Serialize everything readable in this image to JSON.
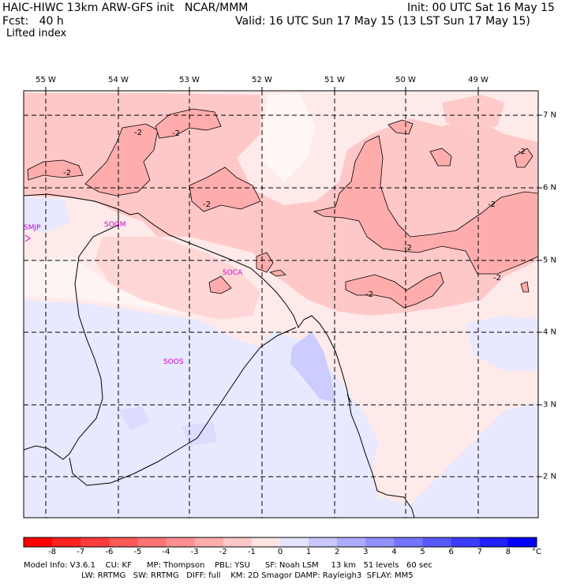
{
  "header": {
    "title_left": "HAIC-HIWC 13km ARW-GFS init   NCAR/MMM",
    "init": "Init: 00 UTC Sat 16 May 15",
    "fcst": "Fcst:   40 h",
    "valid": "Valid: 16 UTC Sun 17 May 15 (13 LST Sun 17 May 15)",
    "field": "Lifted index"
  },
  "map": {
    "longitudes": [
      "55 W",
      "54 W",
      "53 W",
      "52 W",
      "51 W",
      "50 W",
      "49 W"
    ],
    "latitudes": [
      "7 N",
      "6 N",
      "5 N",
      "4 N",
      "3 N",
      "2 N"
    ],
    "stations": [
      {
        "id": "SMJP"
      },
      {
        "id": "SOGM"
      },
      {
        "id": "SOCA"
      },
      {
        "id": "SOOS"
      }
    ],
    "contour_labels": [
      "-2",
      "-2",
      "-2",
      "-2",
      "-2",
      "-2",
      "-2",
      "-2",
      "-2"
    ],
    "colors": {
      "pos_light": "#e6e6ff",
      "pos_mid": "#ccccff",
      "neg_light": "#ffeaea",
      "neg_mid": "#ffc8c8",
      "neg_strong": "#ffa8a8",
      "coast": "#000000",
      "station": "#d000d0"
    }
  },
  "colorbar": {
    "unit": "°C",
    "ticks": [
      "-8",
      "-7",
      "-6",
      "-5",
      "-4",
      "-3",
      "-2",
      "-1",
      "0",
      "1",
      "2",
      "3",
      "4",
      "5",
      "6",
      "7",
      "8"
    ],
    "colors": [
      "#ff0000",
      "#ff2020",
      "#ff3c3c",
      "#ff5858",
      "#ff7474",
      "#ff9090",
      "#ffacac",
      "#ffc8c8",
      "#ffe4e4",
      "#e4e4ff",
      "#c8c8ff",
      "#acacff",
      "#9090ff",
      "#7474ff",
      "#5858ff",
      "#3c3cff",
      "#2020ff",
      "#0000ff"
    ]
  },
  "footer": {
    "line1": "Model Info: V3.6.1    CU: KF      MP: Thompson    PBL: YSU      SF: Noah LSM     13 km   51 levels   60 sec",
    "line2": "                       LW: RRTMG   SW: RRTMG   DIFF: full    KM: 2D Smagor DAMP: Rayleigh3  SFLAY: MM5"
  }
}
